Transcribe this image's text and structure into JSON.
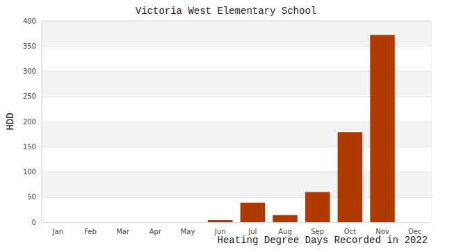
{
  "chart_data": {
    "type": "bar",
    "title": "Victoria West Elementary School",
    "x_label": "Heating Degree Days Recorded in 2022",
    "y_label": "HDD",
    "categories": [
      "Jan",
      "Feb",
      "Mar",
      "Apr",
      "May",
      "Jun",
      "Jul",
      "Aug",
      "Sep",
      "Oct",
      "Nov",
      "Dec"
    ],
    "values": [
      0,
      0,
      0,
      0,
      0,
      4,
      39,
      14,
      60,
      179,
      372,
      0
    ],
    "color": "#ae3a00",
    "ylim": [
      0,
      400
    ],
    "yticks": [
      0,
      50,
      100,
      150,
      200,
      250,
      300,
      350,
      400
    ],
    "grid": true
  }
}
